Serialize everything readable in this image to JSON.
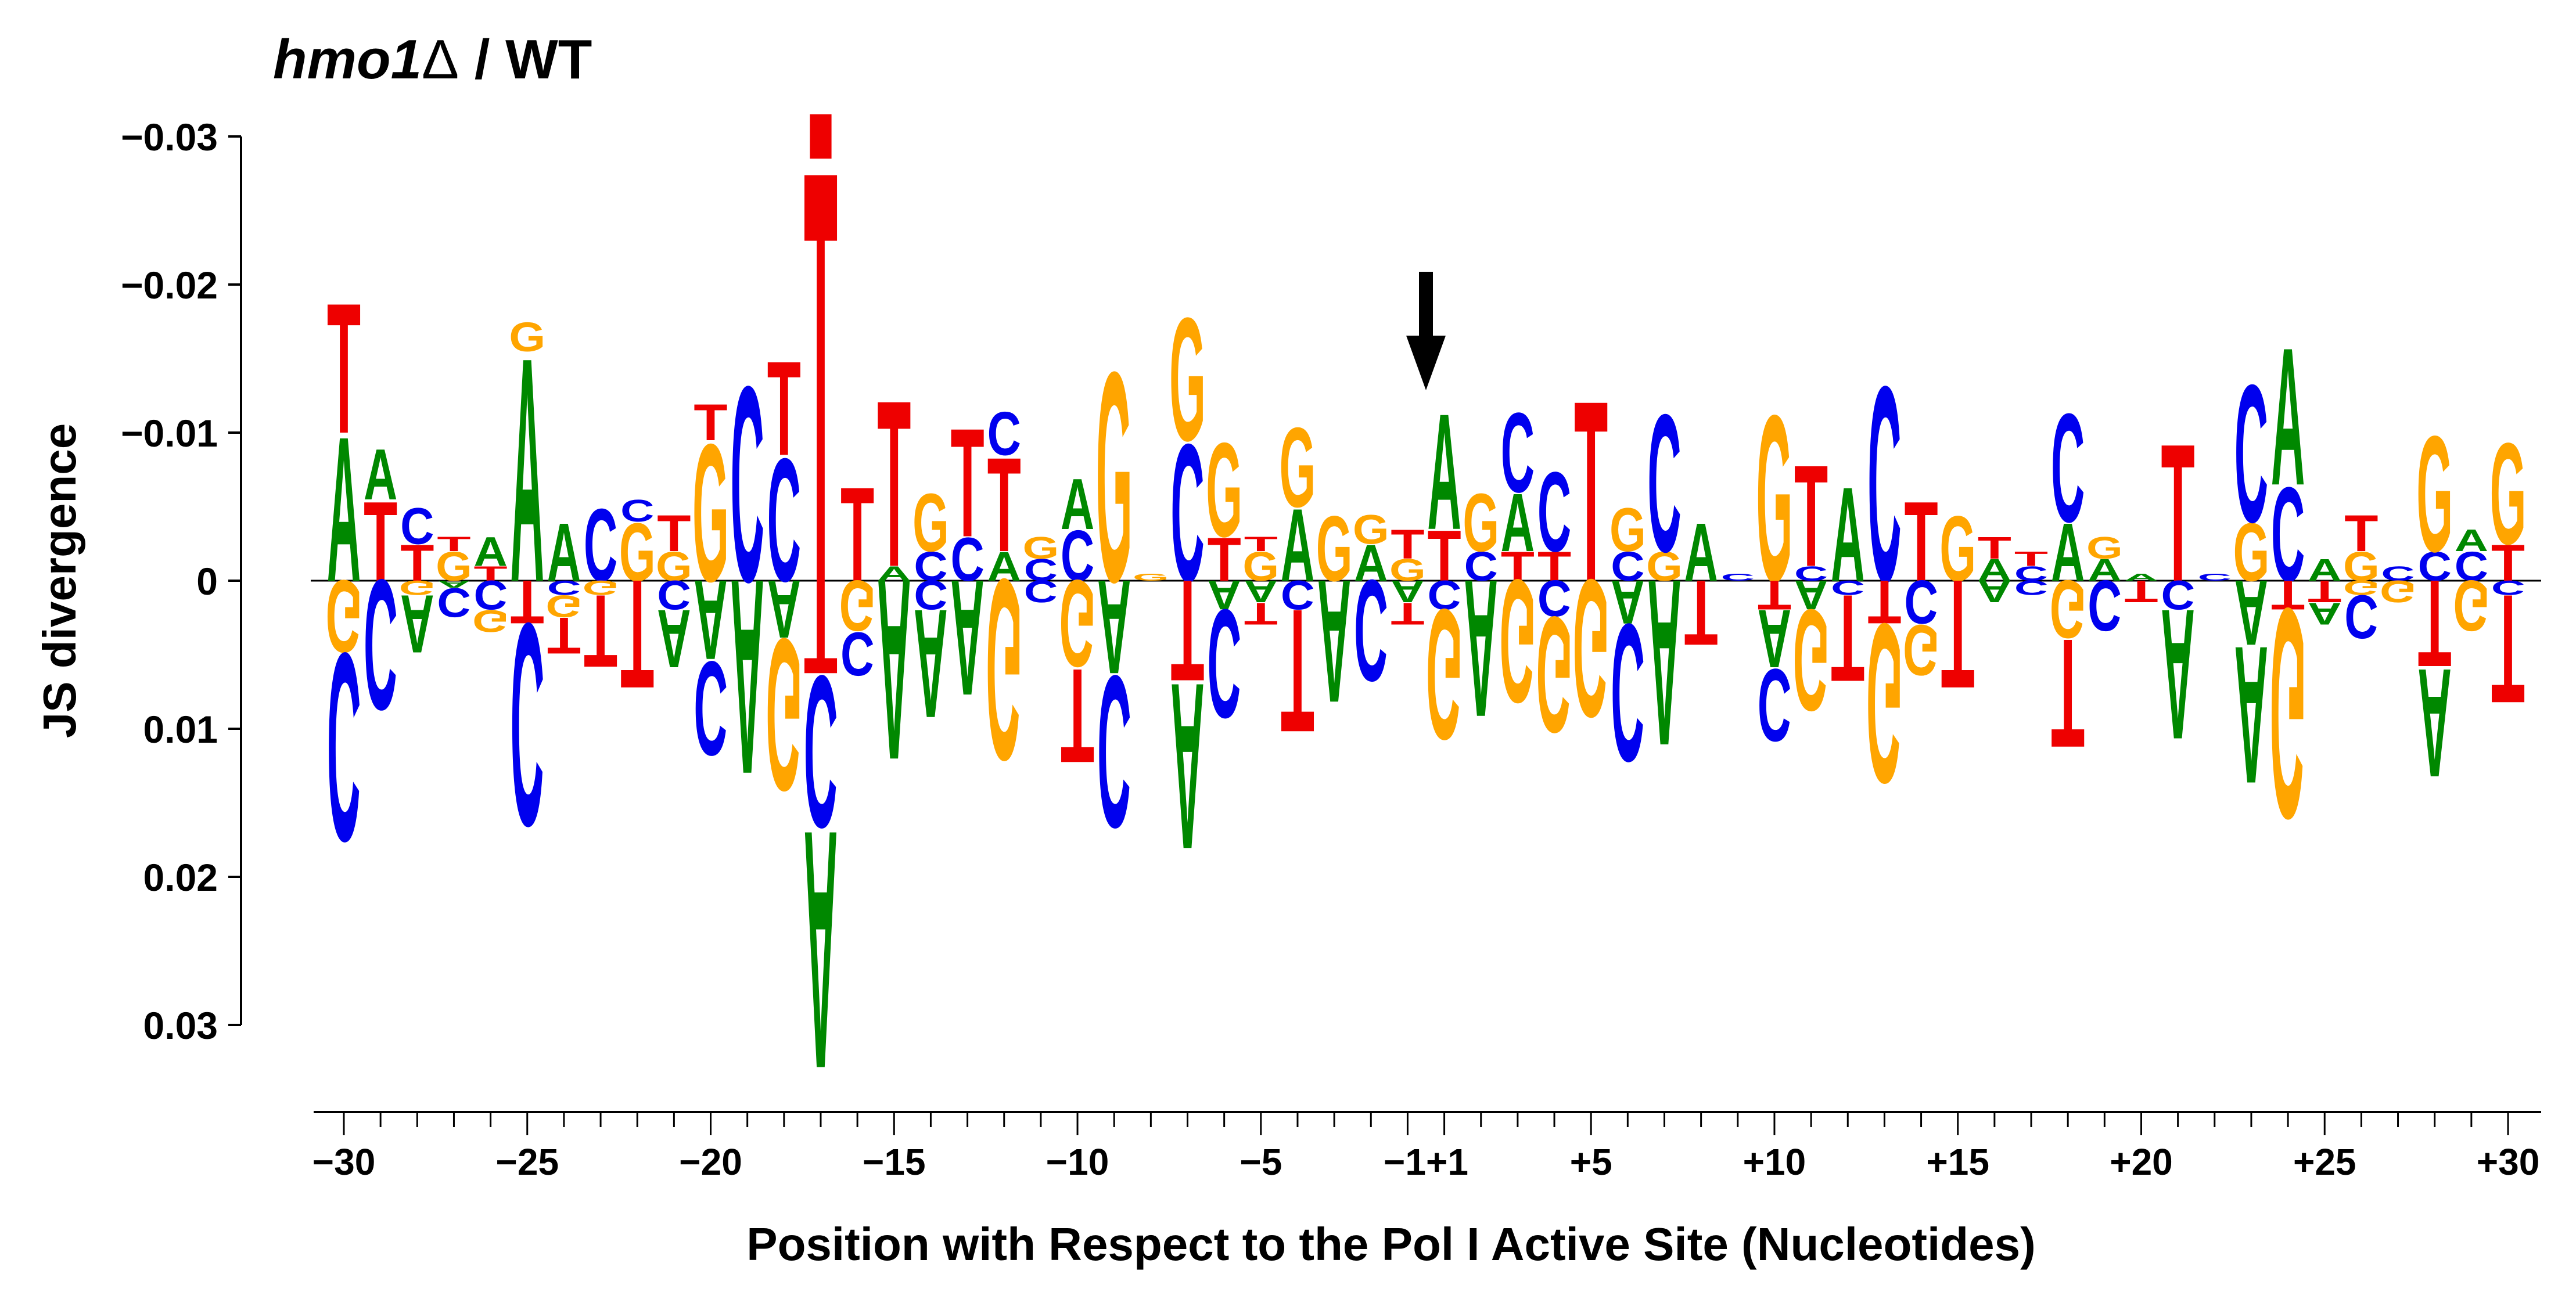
{
  "chart_data": {
    "type": "sequence-logo-difference",
    "title": {
      "italic": "hmo1",
      "symbol": "Δ",
      "rest": " / WT"
    },
    "ylabel": "JS divergence",
    "xlabel": "Position with Respect to the Pol I Active Site (Nucleotides)",
    "ylim": [
      -0.03,
      0.03
    ],
    "y_ticks": [
      {
        "value": -0.03,
        "label": "−0.03"
      },
      {
        "value": -0.02,
        "label": "−0.02"
      },
      {
        "value": -0.01,
        "label": "−0.01"
      },
      {
        "value": 0,
        "label": "0"
      },
      {
        "value": 0.01,
        "label": "0.01"
      },
      {
        "value": 0.02,
        "label": "0.02"
      },
      {
        "value": 0.03,
        "label": "0.03"
      }
    ],
    "x_range": [
      -30,
      30
    ],
    "x_positions": [
      -30,
      -29,
      -28,
      -27,
      -26,
      -25,
      -24,
      -23,
      -22,
      -21,
      -20,
      -19,
      -18,
      -17,
      -16,
      -15,
      -14,
      -13,
      -12,
      -11,
      -10,
      -9,
      -8,
      -7,
      -6,
      -5,
      -4,
      -3,
      -2,
      -1,
      1,
      2,
      3,
      4,
      5,
      6,
      7,
      8,
      9,
      10,
      11,
      12,
      13,
      14,
      15,
      16,
      17,
      18,
      19,
      20,
      21,
      22,
      23,
      24,
      25,
      26,
      27,
      28,
      29,
      30
    ],
    "x_tick_labels": [
      {
        "pos": -30,
        "label": "−30"
      },
      {
        "pos": -25,
        "label": "−25"
      },
      {
        "pos": -20,
        "label": "−20"
      },
      {
        "pos": -15,
        "label": "−15"
      },
      {
        "pos": -10,
        "label": "−10"
      },
      {
        "pos": -5,
        "label": "−5"
      },
      {
        "pos": -1,
        "label": "−1+1"
      },
      {
        "pos": 5,
        "label": "+5"
      },
      {
        "pos": 10,
        "label": "+10"
      },
      {
        "pos": 15,
        "label": "+15"
      },
      {
        "pos": 20,
        "label": "+20"
      },
      {
        "pos": 25,
        "label": "+25"
      },
      {
        "pos": 30,
        "label": "+30"
      }
    ],
    "colors": {
      "A": "#008800",
      "C": "#0000ee",
      "G": "#ffa500",
      "T": "#ee0000",
      "arrow": "#000000"
    },
    "arrow_position": -1,
    "note": "Upward stacks plotted toward −0.03 (top); downward stacks toward +0.03 (bottom). Heights in JS divergence units.",
    "series": [
      {
        "pos": -30,
        "up": [
          [
            "A",
            0.01
          ],
          [
            "T",
            0.009
          ]
        ],
        "down": [
          [
            "G",
            0.005
          ],
          [
            "C",
            0.013
          ]
        ]
      },
      {
        "pos": -29,
        "up": [
          [
            "T",
            0.0055
          ],
          [
            "A",
            0.0035
          ]
        ],
        "down": [
          [
            "C",
            0.009
          ]
        ]
      },
      {
        "pos": -28,
        "up": [
          [
            "T",
            0.0025
          ],
          [
            "C",
            0.0025
          ]
        ],
        "down": [
          [
            "G",
            0.001
          ],
          [
            "A",
            0.004
          ]
        ]
      },
      {
        "pos": -27,
        "up": [
          [
            "G",
            0.002
          ],
          [
            "T",
            0.001
          ]
        ],
        "down": [
          [
            "A",
            0.0005
          ],
          [
            "C",
            0.002
          ]
        ]
      },
      {
        "pos": -26,
        "up": [
          [
            "T",
            0.001
          ],
          [
            "A",
            0.002
          ]
        ],
        "down": [
          [
            "C",
            0.002
          ],
          [
            "G",
            0.0015
          ]
        ]
      },
      {
        "pos": -25,
        "up": [
          [
            "A",
            0.0155
          ],
          [
            "G",
            0.002
          ]
        ],
        "down": [
          [
            "T",
            0.003
          ],
          [
            "C",
            0.014
          ]
        ]
      },
      {
        "pos": -24,
        "up": [
          [
            "A",
            0.004
          ]
        ],
        "down": [
          [
            "C",
            0.001
          ],
          [
            "G",
            0.0015
          ],
          [
            "T",
            0.0025
          ]
        ]
      },
      {
        "pos": -23,
        "up": [
          [
            "C",
            0.005
          ]
        ],
        "down": [
          [
            "G",
            0.001
          ],
          [
            "T",
            0.005
          ]
        ]
      },
      {
        "pos": -22,
        "up": [
          [
            "G",
            0.004
          ],
          [
            "C",
            0.0015
          ]
        ],
        "down": [
          [
            "T",
            0.0075
          ]
        ]
      },
      {
        "pos": -21,
        "up": [
          [
            "G",
            0.002
          ],
          [
            "T",
            0.0025
          ]
        ],
        "down": [
          [
            "C",
            0.002
          ],
          [
            "A",
            0.004
          ]
        ]
      },
      {
        "pos": -20,
        "up": [
          [
            "G",
            0.0095
          ],
          [
            "T",
            0.0025
          ]
        ],
        "down": [
          [
            "A",
            0.0055
          ],
          [
            "C",
            0.0065
          ]
        ]
      },
      {
        "pos": -19,
        "up": [
          [
            "C",
            0.0135
          ]
        ],
        "down": [
          [
            "A",
            0.0135
          ]
        ]
      },
      {
        "pos": -18,
        "up": [
          [
            "C",
            0.0085
          ],
          [
            "T",
            0.0065
          ]
        ],
        "down": [
          [
            "A",
            0.004
          ],
          [
            "G",
            0.0105
          ]
        ]
      },
      {
        "pos": -17,
        "up": [
          [
            "T",
            0.0285
          ],
          [
            "square",
            0.003
          ]
        ],
        "down": [
          [
            "T",
            0.0065
          ],
          [
            "C",
            0.0105
          ],
          [
            "A",
            0.0165
          ]
        ]
      },
      {
        "pos": -16,
        "up": [
          [
            "T",
            0.0065
          ]
        ],
        "down": [
          [
            "G",
            0.0035
          ],
          [
            "C",
            0.003
          ]
        ]
      },
      {
        "pos": -15,
        "up": [
          [
            "A",
            0.001
          ],
          [
            "T",
            0.0115
          ]
        ],
        "down": [
          [
            "A",
            0.0125
          ]
        ]
      },
      {
        "pos": -14,
        "up": [
          [
            "C",
            0.002
          ],
          [
            "G",
            0.004
          ]
        ],
        "down": [
          [
            "C",
            0.002
          ],
          [
            "A",
            0.0075
          ]
        ]
      },
      {
        "pos": -13,
        "up": [
          [
            "C",
            0.003
          ],
          [
            "T",
            0.0075
          ]
        ],
        "down": [
          [
            "A",
            0.008
          ]
        ]
      },
      {
        "pos": -12,
        "up": [
          [
            "A",
            0.002
          ],
          [
            "T",
            0.0065
          ],
          [
            "C",
            0.003
          ]
        ],
        "down": [
          [
            "G",
            0.0125
          ]
        ]
      },
      {
        "pos": -11,
        "up": [
          [
            "C",
            0.0015
          ],
          [
            "G",
            0.0015
          ]
        ],
        "down": [
          [
            "C",
            0.0015
          ]
        ]
      },
      {
        "pos": -10,
        "up": [
          [
            "C",
            0.0035
          ],
          [
            "A",
            0.0035
          ]
        ],
        "down": [
          [
            "G",
            0.006
          ],
          [
            "T",
            0.0065
          ]
        ]
      },
      {
        "pos": -9,
        "up": [
          [
            "G",
            0.0145
          ]
        ],
        "down": [
          [
            "A",
            0.0065
          ],
          [
            "C",
            0.0105
          ]
        ]
      },
      {
        "pos": -8,
        "up": [
          [
            "G",
            0.0005
          ]
        ],
        "down": []
      },
      {
        "pos": -7,
        "up": [
          [
            "C",
            0.0095
          ],
          [
            "G",
            0.0085
          ]
        ],
        "down": [
          [
            "T",
            0.007
          ],
          [
            "A",
            0.0115
          ]
        ]
      },
      {
        "pos": -6,
        "up": [
          [
            "T",
            0.003
          ],
          [
            "G",
            0.0065
          ]
        ],
        "down": [
          [
            "A",
            0.002
          ],
          [
            "C",
            0.0075
          ]
        ]
      },
      {
        "pos": -5,
        "up": [
          [
            "G",
            0.002
          ],
          [
            "T",
            0.001
          ]
        ],
        "down": [
          [
            "A",
            0.0015
          ],
          [
            "T",
            0.0015
          ]
        ]
      },
      {
        "pos": -4,
        "up": [
          [
            "A",
            0.005
          ],
          [
            "G",
            0.0055
          ]
        ],
        "down": [
          [
            "C",
            0.002
          ],
          [
            "T",
            0.0085
          ]
        ]
      },
      {
        "pos": -3,
        "up": [
          [
            "G",
            0.0045
          ]
        ],
        "down": [
          [
            "A",
            0.0085
          ]
        ]
      },
      {
        "pos": -2,
        "up": [
          [
            "A",
            0.0025
          ],
          [
            "G",
            0.002
          ]
        ],
        "down": [
          [
            "C",
            0.007
          ]
        ]
      },
      {
        "pos": -1,
        "up": [
          [
            "G",
            0.0015
          ],
          [
            "T",
            0.002
          ]
        ],
        "down": [
          [
            "A",
            0.0015
          ],
          [
            "T",
            0.0015
          ]
        ]
      },
      {
        "pos": 1,
        "up": [
          [
            "T",
            0.0035
          ],
          [
            "A",
            0.008
          ]
        ],
        "down": [
          [
            "C",
            0.002
          ],
          [
            "G",
            0.009
          ]
        ]
      },
      {
        "pos": 2,
        "up": [
          [
            "C",
            0.002
          ],
          [
            "G",
            0.004
          ]
        ],
        "down": [
          [
            "A",
            0.0095
          ]
        ]
      },
      {
        "pos": 3,
        "up": [
          [
            "T",
            0.002
          ],
          [
            "A",
            0.004
          ],
          [
            "C",
            0.0055
          ]
        ],
        "down": [
          [
            "G",
            0.0085
          ]
        ]
      },
      {
        "pos": 4,
        "up": [
          [
            "T",
            0.002
          ],
          [
            "C",
            0.0055
          ]
        ],
        "down": [
          [
            "C",
            0.0025
          ],
          [
            "G",
            0.008
          ]
        ]
      },
      {
        "pos": 5,
        "up": [
          [
            "T",
            0.0125
          ]
        ],
        "down": [
          [
            "G",
            0.0095
          ]
        ]
      },
      {
        "pos": 6,
        "up": [
          [
            "C",
            0.002
          ],
          [
            "G",
            0.003
          ]
        ],
        "down": [
          [
            "A",
            0.003
          ],
          [
            "C",
            0.0095
          ]
        ]
      },
      {
        "pos": 7,
        "up": [
          [
            "G",
            0.002
          ],
          [
            "C",
            0.0095
          ]
        ],
        "down": [
          [
            "A",
            0.0115
          ]
        ]
      },
      {
        "pos": 8,
        "up": [
          [
            "A",
            0.004
          ]
        ],
        "down": [
          [
            "T",
            0.0045
          ]
        ]
      },
      {
        "pos": 9,
        "up": [
          [
            "C",
            0.0005
          ]
        ],
        "down": []
      },
      {
        "pos": 10,
        "up": [
          [
            "G",
            0.0115
          ]
        ],
        "down": [
          [
            "T",
            0.002
          ],
          [
            "A",
            0.004
          ],
          [
            "C",
            0.005
          ]
        ]
      },
      {
        "pos": 11,
        "up": [
          [
            "C",
            0.001
          ],
          [
            "T",
            0.007
          ]
        ],
        "down": [
          [
            "A",
            0.002
          ],
          [
            "G",
            0.007
          ]
        ]
      },
      {
        "pos": 12,
        "up": [
          [
            "A",
            0.0065
          ]
        ],
        "down": [
          [
            "C",
            0.001
          ],
          [
            "T",
            0.006
          ]
        ]
      },
      {
        "pos": 13,
        "up": [
          [
            "C",
            0.0135
          ]
        ],
        "down": [
          [
            "T",
            0.003
          ],
          [
            "G",
            0.011
          ]
        ]
      },
      {
        "pos": 14,
        "up": [
          [
            "T",
            0.0055
          ]
        ],
        "down": [
          [
            "C",
            0.003
          ],
          [
            "G",
            0.0035
          ]
        ]
      },
      {
        "pos": 15,
        "up": [
          [
            "G",
            0.0045
          ]
        ],
        "down": [
          [
            "T",
            0.0075
          ]
        ]
      },
      {
        "pos": 16,
        "up": [
          [
            "A",
            0.0015
          ],
          [
            "T",
            0.0015
          ]
        ],
        "down": [
          [
            "A",
            0.0015
          ]
        ]
      },
      {
        "pos": 17,
        "up": [
          [
            "C",
            0.001
          ],
          [
            "T",
            0.001
          ]
        ],
        "down": [
          [
            "C",
            0.001
          ]
        ]
      },
      {
        "pos": 18,
        "up": [
          [
            "A",
            0.004
          ],
          [
            "C",
            0.0075
          ]
        ],
        "down": [
          [
            "G",
            0.004
          ],
          [
            "T",
            0.0075
          ]
        ]
      },
      {
        "pos": 19,
        "up": [
          [
            "A",
            0.0015
          ],
          [
            "G",
            0.0015
          ]
        ],
        "down": [
          [
            "C",
            0.0035
          ]
        ]
      },
      {
        "pos": 20,
        "up": [
          [
            "A",
            0.0005
          ]
        ],
        "down": [
          [
            "T",
            0.0015
          ]
        ]
      },
      {
        "pos": 21,
        "up": [
          [
            "T",
            0.0095
          ]
        ],
        "down": [
          [
            "C",
            0.002
          ],
          [
            "A",
            0.009
          ]
        ]
      },
      {
        "pos": 22,
        "up": [
          [
            "C",
            0.0005
          ]
        ],
        "down": []
      },
      {
        "pos": 23,
        "up": [
          [
            "G",
            0.004
          ],
          [
            "C",
            0.0095
          ]
        ],
        "down": [
          [
            "A",
            0.0045
          ],
          [
            "A",
            0.0095
          ]
        ]
      },
      {
        "pos": 24,
        "up": [
          [
            "C",
            0.0065
          ],
          [
            "A",
            0.0095
          ]
        ],
        "down": [
          [
            "T",
            0.002
          ],
          [
            "G",
            0.0145
          ]
        ]
      },
      {
        "pos": 25,
        "up": [
          [
            "A",
            0.0015
          ]
        ],
        "down": [
          [
            "T",
            0.0015
          ],
          [
            "A",
            0.0015
          ]
        ]
      },
      {
        "pos": 26,
        "up": [
          [
            "G",
            0.002
          ],
          [
            "T",
            0.0025
          ]
        ],
        "down": [
          [
            "G",
            0.001
          ],
          [
            "C",
            0.003
          ]
        ]
      },
      {
        "pos": 27,
        "up": [
          [
            "C",
            0.001
          ]
        ],
        "down": [
          [
            "G",
            0.0015
          ]
        ]
      },
      {
        "pos": 28,
        "up": [
          [
            "C",
            0.002
          ],
          [
            "G",
            0.008
          ]
        ],
        "down": [
          [
            "T",
            0.006
          ],
          [
            "A",
            0.0075
          ]
        ]
      },
      {
        "pos": 29,
        "up": [
          [
            "C",
            0.002
          ],
          [
            "A",
            0.0015
          ]
        ],
        "down": [
          [
            "G",
            0.0035
          ]
        ]
      },
      {
        "pos": 30,
        "up": [
          [
            "T",
            0.0025
          ],
          [
            "G",
            0.007
          ]
        ],
        "down": [
          [
            "C",
            0.001
          ],
          [
            "T",
            0.0075
          ]
        ]
      }
    ]
  }
}
